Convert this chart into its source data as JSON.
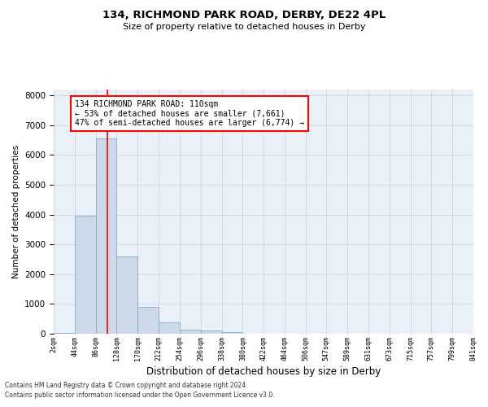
{
  "title1": "134, RICHMOND PARK ROAD, DERBY, DE22 4PL",
  "title2": "Size of property relative to detached houses in Derby",
  "xlabel": "Distribution of detached houses by size in Derby",
  "ylabel": "Number of detached properties",
  "bar_color": "#ccd9e8",
  "bar_edge_color": "#8aaac8",
  "grid_color": "#c8d0dc",
  "bg_color": "#eaf0f8",
  "annotation_line_color": "red",
  "bins": [
    2,
    44,
    86,
    128,
    170,
    212,
    254,
    296,
    338,
    380,
    422,
    464,
    506,
    547,
    589,
    631,
    673,
    715,
    757,
    799,
    841
  ],
  "bin_labels": [
    "2sqm",
    "44sqm",
    "86sqm",
    "128sqm",
    "170sqm",
    "212sqm",
    "254sqm",
    "296sqm",
    "338sqm",
    "380sqm",
    "422sqm",
    "464sqm",
    "506sqm",
    "547sqm",
    "589sqm",
    "631sqm",
    "673sqm",
    "715sqm",
    "757sqm",
    "799sqm",
    "841sqm"
  ],
  "values": [
    30,
    3950,
    6550,
    2600,
    900,
    370,
    150,
    100,
    60,
    10,
    5,
    2,
    1,
    1,
    0,
    0,
    0,
    0,
    0,
    0
  ],
  "property_line_x": 110,
  "ylim": [
    0,
    8200
  ],
  "yticks": [
    0,
    1000,
    2000,
    3000,
    4000,
    5000,
    6000,
    7000,
    8000
  ],
  "annotation_text": "134 RICHMOND PARK ROAD: 110sqm\n← 53% of detached houses are smaller (7,661)\n47% of semi-detached houses are larger (6,774) →",
  "footer1": "Contains HM Land Registry data © Crown copyright and database right 2024.",
  "footer2": "Contains public sector information licensed under the Open Government Licence v3.0."
}
